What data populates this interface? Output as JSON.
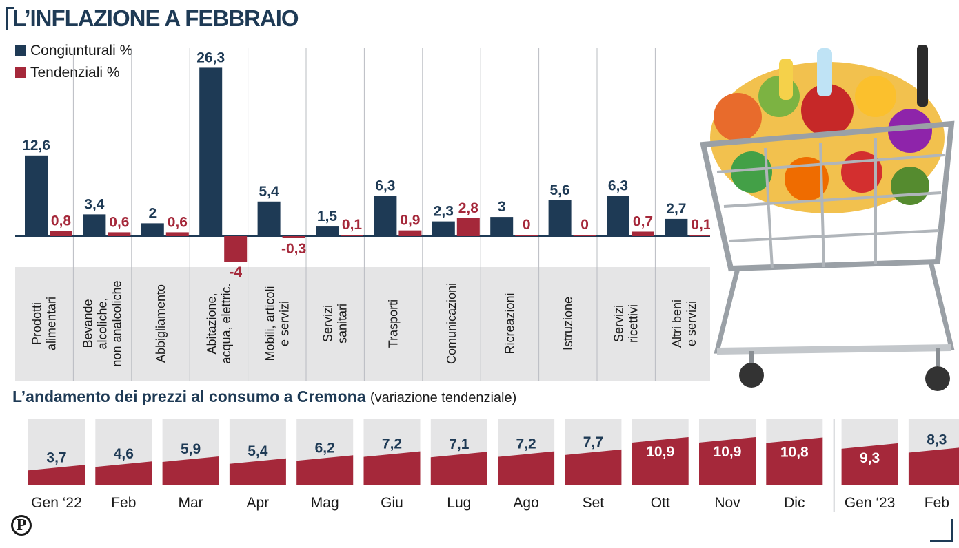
{
  "title": "L’INFLAZIONE A FEBBRAIO",
  "colors": {
    "navy": "#1e3a55",
    "red": "#a5283a",
    "panel": "#e5e5e6",
    "grid": "#b9bcc2"
  },
  "legend": [
    {
      "label": "Congiunturali %",
      "color": "#1e3a55"
    },
    {
      "label": "Tendenziali %",
      "color": "#a5283a"
    }
  ],
  "chart_data": [
    {
      "type": "bar",
      "title": "L’INFLAZIONE A FEBBRAIO",
      "categories": [
        [
          "Prodotti",
          "alimentari"
        ],
        [
          "Bevande",
          "alcoliche,",
          "non analcoliche"
        ],
        [
          "Abbigliamento"
        ],
        [
          "Abitazione,",
          "acqua, elettric."
        ],
        [
          "Mobili, articoli",
          "e servizi"
        ],
        [
          "Servizi",
          "sanitari"
        ],
        [
          "Trasporti"
        ],
        [
          "Comunicazioni"
        ],
        [
          "Ricreazioni"
        ],
        [
          "Istruzione"
        ],
        [
          "Servizi",
          "ricettivi"
        ],
        [
          "Altri beni",
          "e servizi"
        ]
      ],
      "series": [
        {
          "name": "Congiunturali %",
          "values": [
            12.6,
            3.4,
            2,
            26.3,
            5.4,
            1.5,
            6.3,
            2.3,
            3,
            5.6,
            6.3,
            2.7
          ],
          "labels": [
            "12,6",
            "3,4",
            "2",
            "26,3",
            "5,4",
            "1,5",
            "6,3",
            "2,3",
            "3",
            "5,6",
            "6,3",
            "2,7"
          ]
        },
        {
          "name": "Tendenziali %",
          "values": [
            0.8,
            0.6,
            0.6,
            -4,
            -0.3,
            0.1,
            0.9,
            2.8,
            0,
            0,
            0.7,
            0.1
          ],
          "labels": [
            "0,8",
            "0,6",
            "0,6",
            "-4",
            "-0,3",
            "0,1",
            "0,9",
            "2,8",
            "0",
            "0",
            "0,7",
            "0,1"
          ]
        }
      ]
    },
    {
      "type": "bar",
      "title": "L’andamento dei prezzi al consumo a Cremona",
      "subtitle": "(variazione tendenziale)",
      "categories": [
        "Gen ‘22",
        "Feb",
        "Mar",
        "Apr",
        "Mag",
        "Giu",
        "Lug",
        "Ago",
        "Set",
        "Ott",
        "Nov",
        "Dic",
        "Gen ‘23",
        "Feb"
      ],
      "values": [
        3.7,
        4.6,
        5.9,
        5.4,
        6.2,
        7.2,
        7.1,
        7.2,
        7.7,
        10.9,
        10.9,
        10.8,
        9.3,
        8.3
      ],
      "labels": [
        "3,7",
        "4,6",
        "5,9",
        "5,4",
        "6,2",
        "7,2",
        "7,1",
        "7,2",
        "7,7",
        "10,9",
        "10,9",
        "10,8",
        "9,3",
        "8,3"
      ]
    }
  ],
  "logo_letter": "P"
}
